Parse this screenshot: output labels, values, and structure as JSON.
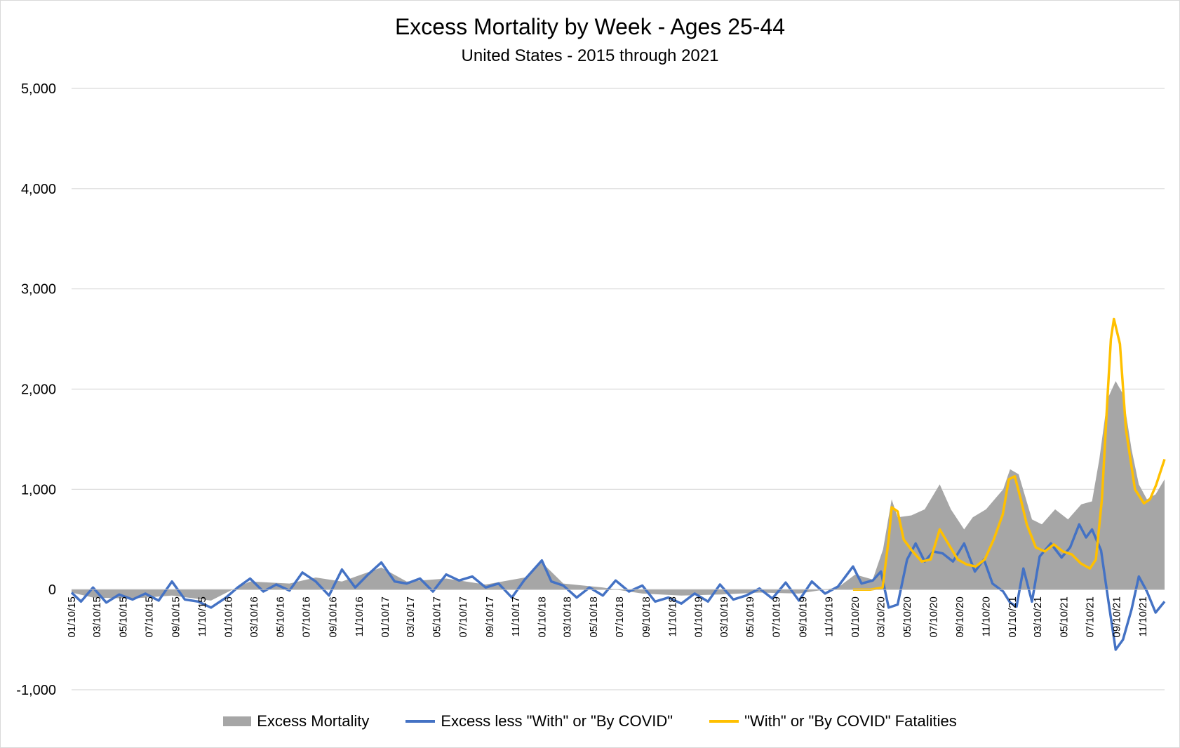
{
  "chart_data": {
    "type": "area",
    "title": "Excess Mortality by Week - Ages 25-44",
    "subtitle": "United States - 2015 through 2021",
    "xlabel": "",
    "ylabel": "",
    "ylim": [
      -1000,
      5000
    ],
    "yticks": [
      "5,000",
      "4,000",
      "3,000",
      "2,000",
      "1,000",
      "0",
      "-1,000"
    ],
    "grid": true,
    "legend_position": "bottom",
    "x_tick_labels": [
      "01/10/15",
      "03/10/15",
      "05/10/15",
      "07/10/15",
      "09/10/15",
      "11/10/15",
      "01/10/16",
      "03/10/16",
      "05/10/16",
      "07/10/16",
      "09/10/16",
      "11/10/16",
      "01/10/17",
      "03/10/17",
      "05/10/17",
      "07/10/17",
      "09/10/17",
      "11/10/17",
      "01/10/18",
      "03/10/18",
      "05/10/18",
      "07/10/18",
      "09/10/18",
      "11/10/18",
      "01/10/19",
      "03/10/19",
      "05/10/19",
      "07/10/19",
      "09/10/19",
      "11/10/19",
      "01/10/20",
      "03/10/20",
      "05/10/20",
      "07/10/20",
      "09/10/20",
      "11/10/20",
      "01/10/21",
      "03/10/21",
      "05/10/21",
      "07/10/21",
      "09/10/21",
      "11/10/21"
    ],
    "x_start": "2015-01-10",
    "series": [
      {
        "name": "Excess Mortality",
        "kind": "area",
        "color": "#a6a6a6",
        "points": [
          [
            "2015-01-10",
            -30
          ],
          [
            "2015-03-01",
            -80
          ],
          [
            "2015-06-01",
            -90
          ],
          [
            "2015-09-01",
            -60
          ],
          [
            "2015-12-01",
            -110
          ],
          [
            "2016-01-20",
            0
          ],
          [
            "2016-03-01",
            80
          ],
          [
            "2016-06-01",
            60
          ],
          [
            "2016-08-01",
            120
          ],
          [
            "2016-10-01",
            80
          ],
          [
            "2017-01-01",
            220
          ],
          [
            "2017-03-01",
            80
          ],
          [
            "2017-06-01",
            110
          ],
          [
            "2017-09-01",
            50
          ],
          [
            "2017-12-01",
            120
          ],
          [
            "2018-01-10",
            270
          ],
          [
            "2018-03-01",
            60
          ],
          [
            "2018-06-01",
            20
          ],
          [
            "2018-09-01",
            -40
          ],
          [
            "2018-12-01",
            -60
          ],
          [
            "2019-03-01",
            -50
          ],
          [
            "2019-06-01",
            -30
          ],
          [
            "2019-09-01",
            -40
          ],
          [
            "2019-12-01",
            20
          ],
          [
            "2020-01-10",
            150
          ],
          [
            "2020-02-20",
            100
          ],
          [
            "2020-03-15",
            400
          ],
          [
            "2020-04-04",
            900
          ],
          [
            "2020-04-18",
            720
          ],
          [
            "2020-05-20",
            740
          ],
          [
            "2020-06-20",
            800
          ],
          [
            "2020-07-25",
            1050
          ],
          [
            "2020-08-20",
            800
          ],
          [
            "2020-09-20",
            600
          ],
          [
            "2020-10-10",
            720
          ],
          [
            "2020-11-10",
            800
          ],
          [
            "2020-12-20",
            1000
          ],
          [
            "2021-01-05",
            1200
          ],
          [
            "2021-01-25",
            1150
          ],
          [
            "2021-02-25",
            700
          ],
          [
            "2021-03-20",
            650
          ],
          [
            "2021-04-20",
            800
          ],
          [
            "2021-05-20",
            700
          ],
          [
            "2021-06-20",
            850
          ],
          [
            "2021-07-15",
            880
          ],
          [
            "2021-08-01",
            1300
          ],
          [
            "2021-08-20",
            1900
          ],
          [
            "2021-09-08",
            2080
          ],
          [
            "2021-09-25",
            1950
          ],
          [
            "2021-10-15",
            1400
          ],
          [
            "2021-11-01",
            1050
          ],
          [
            "2021-11-20",
            900
          ],
          [
            "2021-12-10",
            950
          ],
          [
            "2021-12-31",
            1100
          ]
        ]
      },
      {
        "name": "Excess less \"With\" or \"By COVID\"",
        "kind": "line",
        "color": "#4472c4",
        "points": [
          [
            "2015-01-10",
            -30
          ],
          [
            "2015-02-01",
            -120
          ],
          [
            "2015-03-01",
            20
          ],
          [
            "2015-04-01",
            -130
          ],
          [
            "2015-05-01",
            -50
          ],
          [
            "2015-06-01",
            -100
          ],
          [
            "2015-07-01",
            -40
          ],
          [
            "2015-08-01",
            -110
          ],
          [
            "2015-09-01",
            80
          ],
          [
            "2015-10-01",
            -100
          ],
          [
            "2015-11-01",
            -120
          ],
          [
            "2015-12-01",
            -180
          ],
          [
            "2016-01-05",
            -80
          ],
          [
            "2016-02-01",
            20
          ],
          [
            "2016-03-01",
            110
          ],
          [
            "2016-04-01",
            -20
          ],
          [
            "2016-05-01",
            50
          ],
          [
            "2016-06-01",
            -10
          ],
          [
            "2016-07-01",
            170
          ],
          [
            "2016-08-01",
            80
          ],
          [
            "2016-09-01",
            -60
          ],
          [
            "2016-10-01",
            200
          ],
          [
            "2016-11-01",
            20
          ],
          [
            "2016-12-01",
            150
          ],
          [
            "2017-01-01",
            270
          ],
          [
            "2017-02-01",
            80
          ],
          [
            "2017-03-01",
            60
          ],
          [
            "2017-04-01",
            110
          ],
          [
            "2017-05-01",
            -20
          ],
          [
            "2017-06-01",
            150
          ],
          [
            "2017-07-01",
            90
          ],
          [
            "2017-08-01",
            130
          ],
          [
            "2017-09-01",
            20
          ],
          [
            "2017-10-01",
            60
          ],
          [
            "2017-11-01",
            -80
          ],
          [
            "2017-12-01",
            100
          ],
          [
            "2018-01-10",
            290
          ],
          [
            "2018-02-01",
            80
          ],
          [
            "2018-03-01",
            40
          ],
          [
            "2018-04-01",
            -80
          ],
          [
            "2018-05-01",
            20
          ],
          [
            "2018-06-01",
            -60
          ],
          [
            "2018-07-01",
            90
          ],
          [
            "2018-08-01",
            -20
          ],
          [
            "2018-09-01",
            40
          ],
          [
            "2018-10-01",
            -120
          ],
          [
            "2018-11-01",
            -80
          ],
          [
            "2018-12-01",
            -140
          ],
          [
            "2019-01-01",
            -40
          ],
          [
            "2019-02-01",
            -120
          ],
          [
            "2019-03-01",
            50
          ],
          [
            "2019-04-01",
            -100
          ],
          [
            "2019-05-01",
            -60
          ],
          [
            "2019-06-01",
            10
          ],
          [
            "2019-07-01",
            -90
          ],
          [
            "2019-08-01",
            70
          ],
          [
            "2019-09-01",
            -110
          ],
          [
            "2019-10-01",
            80
          ],
          [
            "2019-11-01",
            -40
          ],
          [
            "2019-12-01",
            30
          ],
          [
            "2020-01-05",
            230
          ],
          [
            "2020-01-25",
            60
          ],
          [
            "2020-02-20",
            90
          ],
          [
            "2020-03-10",
            180
          ],
          [
            "2020-03-28",
            -180
          ],
          [
            "2020-04-18",
            -150
          ],
          [
            "2020-05-10",
            300
          ],
          [
            "2020-05-30",
            460
          ],
          [
            "2020-06-20",
            280
          ],
          [
            "2020-07-10",
            380
          ],
          [
            "2020-08-01",
            360
          ],
          [
            "2020-08-25",
            280
          ],
          [
            "2020-09-20",
            460
          ],
          [
            "2020-10-15",
            180
          ],
          [
            "2020-11-05",
            300
          ],
          [
            "2020-11-25",
            60
          ],
          [
            "2020-12-20",
            -20
          ],
          [
            "2021-01-05",
            -130
          ],
          [
            "2021-01-20",
            -170
          ],
          [
            "2021-02-05",
            210
          ],
          [
            "2021-02-25",
            -120
          ],
          [
            "2021-03-15",
            330
          ],
          [
            "2021-04-10",
            460
          ],
          [
            "2021-05-05",
            320
          ],
          [
            "2021-05-25",
            420
          ],
          [
            "2021-06-15",
            650
          ],
          [
            "2021-07-01",
            520
          ],
          [
            "2021-07-15",
            600
          ],
          [
            "2021-08-05",
            390
          ],
          [
            "2021-08-25",
            -200
          ],
          [
            "2021-09-08",
            -600
          ],
          [
            "2021-09-25",
            -500
          ],
          [
            "2021-10-15",
            -200
          ],
          [
            "2021-11-01",
            130
          ],
          [
            "2021-11-20",
            -20
          ],
          [
            "2021-12-10",
            -230
          ],
          [
            "2021-12-31",
            -120
          ]
        ]
      },
      {
        "name": "\"With\" or \"By COVID\" Fatalities",
        "kind": "line",
        "color": "#ffc000",
        "points": [
          [
            "2020-01-05",
            0
          ],
          [
            "2020-02-15",
            0
          ],
          [
            "2020-03-14",
            20
          ],
          [
            "2020-03-28",
            500
          ],
          [
            "2020-04-04",
            820
          ],
          [
            "2020-04-18",
            780
          ],
          [
            "2020-05-02",
            500
          ],
          [
            "2020-05-23",
            380
          ],
          [
            "2020-06-13",
            280
          ],
          [
            "2020-07-04",
            300
          ],
          [
            "2020-07-25",
            600
          ],
          [
            "2020-08-15",
            450
          ],
          [
            "2020-09-05",
            300
          ],
          [
            "2020-09-26",
            250
          ],
          [
            "2020-10-17",
            230
          ],
          [
            "2020-11-07",
            300
          ],
          [
            "2020-11-28",
            500
          ],
          [
            "2020-12-19",
            750
          ],
          [
            "2021-01-02",
            1100
          ],
          [
            "2021-01-16",
            1130
          ],
          [
            "2021-01-30",
            900
          ],
          [
            "2021-02-13",
            650
          ],
          [
            "2021-03-06",
            420
          ],
          [
            "2021-03-27",
            380
          ],
          [
            "2021-04-17",
            450
          ],
          [
            "2021-05-08",
            380
          ],
          [
            "2021-05-29",
            350
          ],
          [
            "2021-06-19",
            260
          ],
          [
            "2021-07-10",
            210
          ],
          [
            "2021-07-24",
            300
          ],
          [
            "2021-08-07",
            900
          ],
          [
            "2021-08-21",
            2000
          ],
          [
            "2021-08-28",
            2500
          ],
          [
            "2021-09-04",
            2700
          ],
          [
            "2021-09-18",
            2450
          ],
          [
            "2021-10-02",
            1600
          ],
          [
            "2021-10-23",
            1000
          ],
          [
            "2021-11-13",
            860
          ],
          [
            "2021-11-27",
            900
          ],
          [
            "2021-12-11",
            1040
          ],
          [
            "2021-12-31",
            1300
          ]
        ]
      }
    ]
  }
}
